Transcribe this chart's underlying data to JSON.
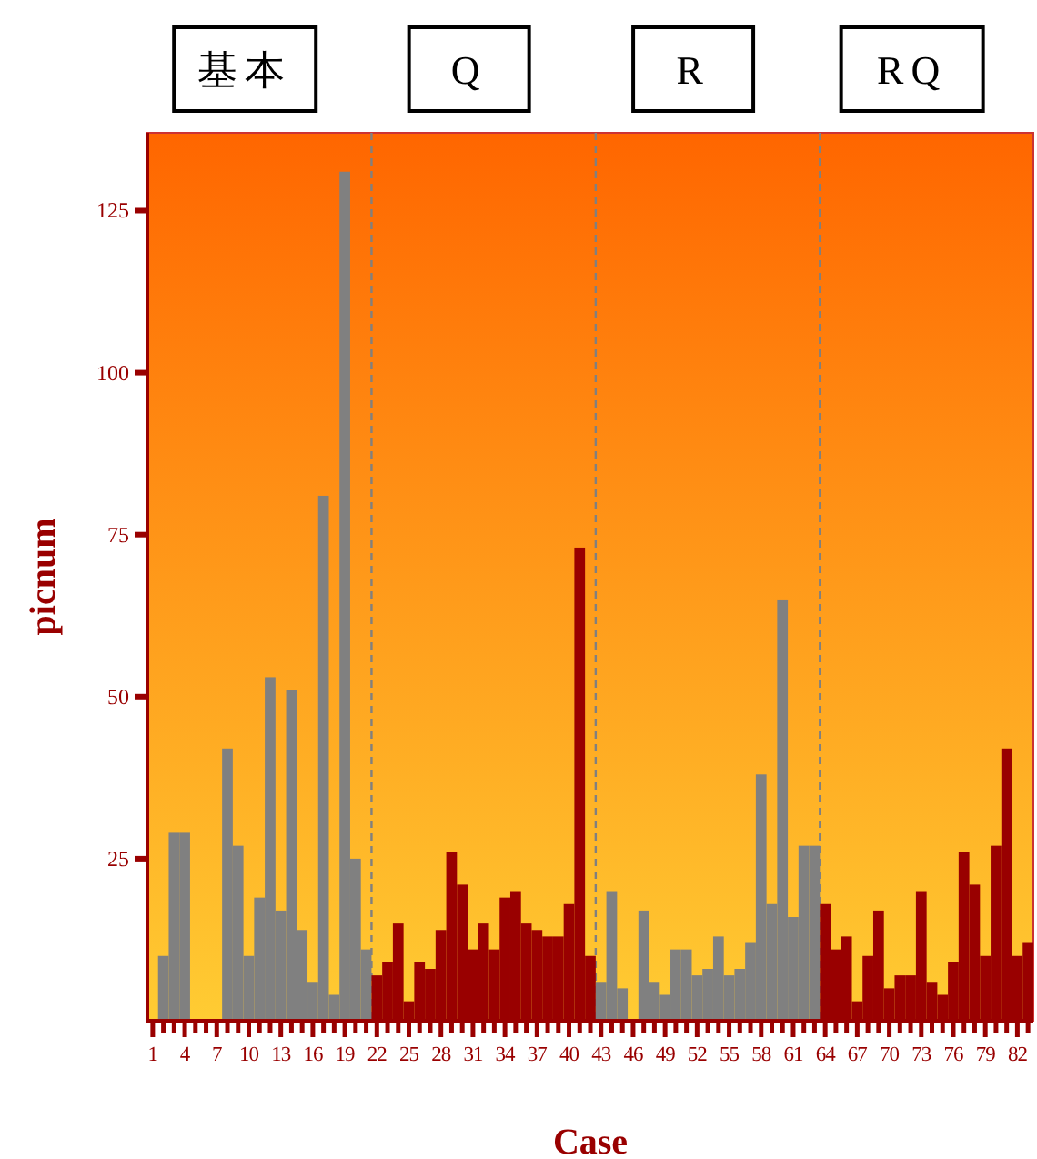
{
  "chart_data": {
    "type": "bar",
    "xlabel": "Case",
    "ylabel": "picnum",
    "annotations": [
      "基本",
      "Q",
      "R",
      "RQ"
    ],
    "x": [
      1,
      2,
      3,
      4,
      5,
      6,
      7,
      8,
      9,
      10,
      11,
      12,
      13,
      14,
      15,
      16,
      17,
      18,
      19,
      20,
      21,
      22,
      23,
      24,
      25,
      26,
      27,
      28,
      29,
      30,
      31,
      32,
      33,
      34,
      35,
      36,
      37,
      38,
      39,
      40,
      41,
      42,
      43,
      44,
      45,
      46,
      47,
      48,
      49,
      50,
      51,
      52,
      53,
      54,
      55,
      56,
      57,
      58,
      59,
      60,
      61,
      62,
      63,
      64,
      65,
      66,
      67,
      68,
      69,
      70,
      71,
      72,
      73,
      74,
      75,
      76,
      77,
      78,
      79,
      80,
      81,
      82,
      83
    ],
    "values": [
      0,
      10,
      29,
      29,
      0,
      0,
      0,
      42,
      27,
      10,
      19,
      53,
      17,
      51,
      14,
      6,
      81,
      4,
      131,
      25,
      11,
      7,
      9,
      15,
      3,
      9,
      8,
      14,
      26,
      21,
      11,
      15,
      11,
      19,
      20,
      15,
      14,
      13,
      13,
      18,
      73,
      10,
      6,
      20,
      5,
      0,
      17,
      6,
      4,
      11,
      11,
      7,
      8,
      13,
      7,
      8,
      12,
      38,
      18,
      65,
      16,
      27,
      27,
      18,
      11,
      13,
      3,
      10,
      17,
      5,
      7,
      7,
      20,
      6,
      4,
      9,
      26,
      21,
      10,
      27,
      42,
      10,
      12
    ],
    "colors": [
      "#808080",
      "#808080",
      "#808080",
      "#808080",
      "#808080",
      "#808080",
      "#808080",
      "#808080",
      "#808080",
      "#808080",
      "#808080",
      "#808080",
      "#808080",
      "#808080",
      "#808080",
      "#808080",
      "#808080",
      "#808080",
      "#808080",
      "#808080",
      "#808080",
      "#990000",
      "#990000",
      "#990000",
      "#990000",
      "#990000",
      "#990000",
      "#990000",
      "#990000",
      "#990000",
      "#990000",
      "#990000",
      "#990000",
      "#990000",
      "#990000",
      "#990000",
      "#990000",
      "#990000",
      "#990000",
      "#990000",
      "#990000",
      "#990000",
      "#808080",
      "#808080",
      "#808080",
      "#808080",
      "#808080",
      "#808080",
      "#808080",
      "#808080",
      "#808080",
      "#808080",
      "#808080",
      "#808080",
      "#808080",
      "#808080",
      "#808080",
      "#808080",
      "#808080",
      "#808080",
      "#808080",
      "#808080",
      "#808080",
      "#990000",
      "#990000",
      "#990000",
      "#990000",
      "#990000",
      "#990000",
      "#990000",
      "#990000",
      "#990000",
      "#990000",
      "#990000",
      "#990000",
      "#990000",
      "#990000",
      "#990000",
      "#990000",
      "#990000",
      "#990000",
      "#990000",
      "#990000"
    ],
    "xlim": [
      0.5,
      83.5
    ],
    "xticks": [
      1,
      {
        "value": 2,
        "label": null
      },
      {
        "value": 3,
        "label": null
      },
      4,
      {
        "value": 5,
        "label": null
      },
      {
        "value": 6,
        "label": null
      },
      7,
      {
        "value": 8,
        "label": null
      },
      {
        "value": 9,
        "label": null
      },
      10,
      {
        "value": 11,
        "label": null
      },
      {
        "value": 12,
        "label": null
      },
      13,
      {
        "value": 14,
        "label": null
      },
      {
        "value": 15,
        "label": null
      },
      16,
      {
        "value": 17,
        "label": null
      },
      {
        "value": 18,
        "label": null
      },
      19,
      {
        "value": 20,
        "label": null
      },
      {
        "value": 21,
        "label": null
      },
      22,
      {
        "value": 23,
        "label": null
      },
      {
        "value": 24,
        "label": null
      },
      25,
      {
        "value": 26,
        "label": null
      },
      {
        "value": 27,
        "label": null
      },
      28,
      {
        "value": 29,
        "label": null
      },
      {
        "value": 30,
        "label": null
      },
      31,
      {
        "value": 32,
        "label": null
      },
      {
        "value": 33,
        "label": null
      },
      34,
      {
        "value": 35,
        "label": null
      },
      {
        "value": 36,
        "label": null
      },
      37,
      {
        "value": 38,
        "label": null
      },
      {
        "value": 39,
        "label": null
      },
      40,
      {
        "value": 41,
        "label": null
      },
      {
        "value": 42,
        "label": null
      },
      43,
      {
        "value": 44,
        "label": null
      },
      {
        "value": 45,
        "label": null
      },
      46,
      {
        "value": 47,
        "label": null
      },
      {
        "value": 48,
        "label": null
      },
      49,
      {
        "value": 50,
        "label": null
      },
      {
        "value": 51,
        "label": null
      },
      52,
      {
        "value": 53,
        "label": null
      },
      {
        "value": 54,
        "label": null
      },
      55,
      {
        "value": 56,
        "label": null
      },
      {
        "value": 57,
        "label": null
      },
      58,
      {
        "value": 59,
        "label": null
      },
      {
        "value": 60,
        "label": null
      },
      61,
      {
        "value": 62,
        "label": null
      },
      {
        "value": 63,
        "label": null
      },
      64,
      {
        "value": 65,
        "label": null
      },
      {
        "value": 66,
        "label": null
      },
      67,
      {
        "value": 68,
        "label": null
      },
      {
        "value": 69,
        "label": null
      },
      70,
      {
        "value": 71,
        "label": null
      },
      {
        "value": 72,
        "label": null
      },
      73,
      {
        "value": 74,
        "label": null
      },
      {
        "value": 75,
        "label": null
      },
      76,
      {
        "value": 77,
        "label": null
      },
      {
        "value": 78,
        "label": null
      },
      79,
      {
        "value": 80,
        "label": null
      },
      {
        "value": 81,
        "label": null
      },
      82,
      {
        "value": 83,
        "label": null
      }
    ],
    "ylim": [
      0,
      137
    ],
    "yticks": [
      25,
      50,
      75,
      100,
      125
    ],
    "ref_lines": [
      {
        "axis": "x",
        "value": 21.5,
        "color": "#808080",
        "line_style": "dashed"
      },
      {
        "axis": "x",
        "value": 42.5,
        "color": "#808080",
        "line_style": "dashed"
      },
      {
        "axis": "x",
        "value": 63.5,
        "color": "#808080",
        "line_style": "dashed"
      }
    ],
    "grid": false
  }
}
